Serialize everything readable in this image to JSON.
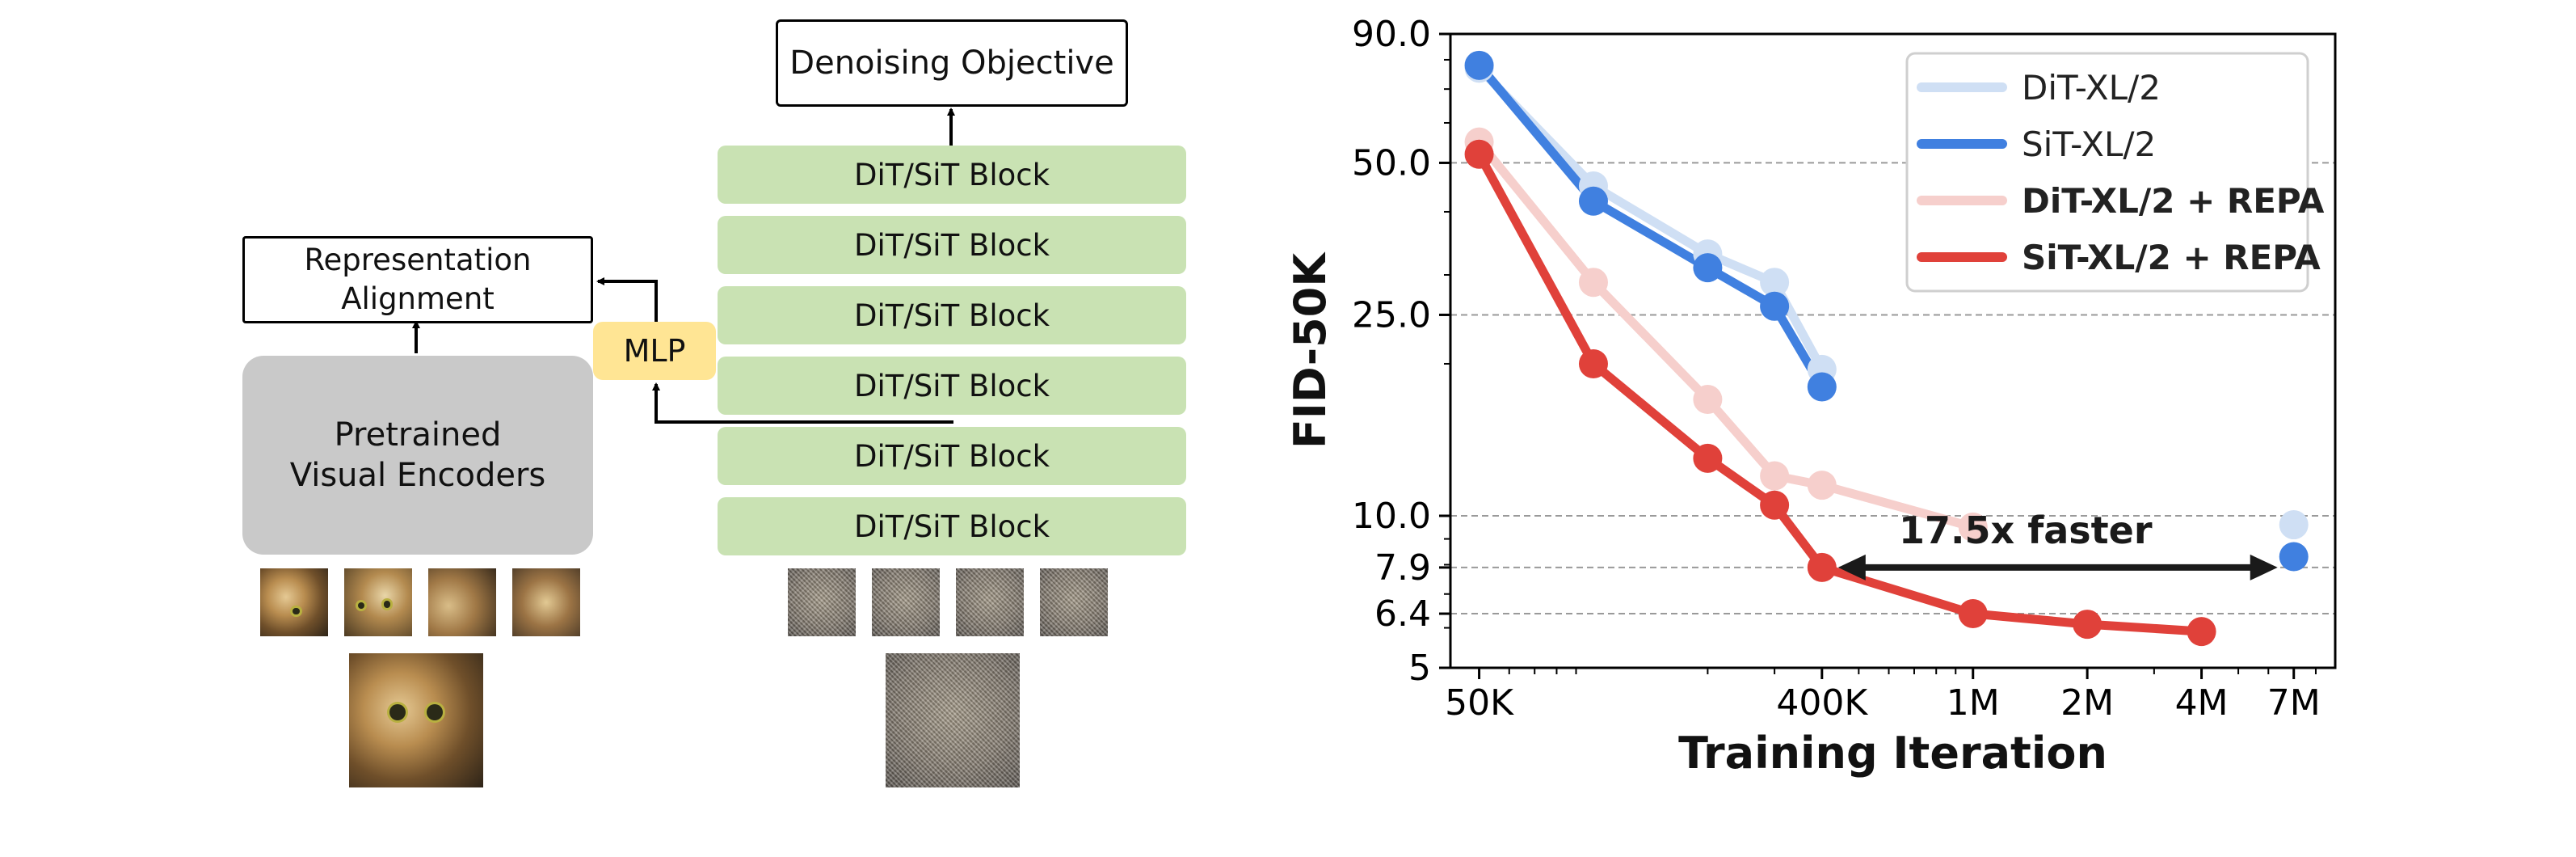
{
  "diagram": {
    "objective_label": "Denoising Objective",
    "block_label": "DiT/SiT Block",
    "block_count": 6,
    "alignment_label": "Representation\nAlignment",
    "encoder_label": "Pretrained\nVisual Encoders",
    "mlp_label": "MLP"
  },
  "chart_data": {
    "type": "line",
    "xscale": "log",
    "yscale": "log",
    "xlim": [
      42000,
      9000000
    ],
    "ylim": [
      5,
      90
    ],
    "ylabel": "FID-50K",
    "xlabel": "Training Iteration",
    "x_ticks": [
      {
        "value": 50000,
        "label": "50K"
      },
      {
        "value": 400000,
        "label": "400K"
      },
      {
        "value": 1000000,
        "label": "1M"
      },
      {
        "value": 2000000,
        "label": "2M"
      },
      {
        "value": 4000000,
        "label": "4M"
      },
      {
        "value": 7000000,
        "label": "7M"
      }
    ],
    "y_ticks": [
      {
        "value": 90,
        "label": "90.0"
      },
      {
        "value": 50,
        "label": "50.0"
      },
      {
        "value": 25,
        "label": "25.0"
      },
      {
        "value": 10,
        "label": "10.0"
      },
      {
        "value": 7.9,
        "label": "7.9"
      },
      {
        "value": 6.4,
        "label": "6.4"
      },
      {
        "value": 5,
        "label": "5"
      }
    ],
    "series": [
      {
        "name": "DiT-XL/2",
        "color": "#cfdff4",
        "bold": false,
        "x": [
          50000,
          100000,
          200000,
          300000,
          400000
        ],
        "y": [
          77,
          45,
          33,
          29,
          19.5
        ],
        "extra_point": {
          "x": 7000000,
          "y": 9.6
        }
      },
      {
        "name": "SiT-XL/2",
        "color": "#4080e0",
        "bold": false,
        "x": [
          50000,
          100000,
          200000,
          300000,
          400000
        ],
        "y": [
          78,
          42,
          31,
          26,
          18
        ],
        "extra_point": {
          "x": 7000000,
          "y": 8.3
        }
      },
      {
        "name": "DiT-XL/2 + REPA",
        "color": "#f6cfcc",
        "bold": true,
        "x": [
          50000,
          100000,
          200000,
          300000,
          400000,
          1000000
        ],
        "y": [
          55,
          29,
          17,
          12,
          11.5,
          9.5
        ]
      },
      {
        "name": "SiT-XL/2 + REPA",
        "color": "#e0413a",
        "bold": true,
        "x": [
          50000,
          100000,
          200000,
          300000,
          400000,
          1000000,
          2000000,
          4000000
        ],
        "y": [
          52,
          20,
          13,
          10.5,
          7.9,
          6.4,
          6.1,
          5.9
        ]
      }
    ],
    "annotation": {
      "text": "17.5x faster",
      "x_from": 400000,
      "x_to": 7000000,
      "y": 7.9
    }
  }
}
